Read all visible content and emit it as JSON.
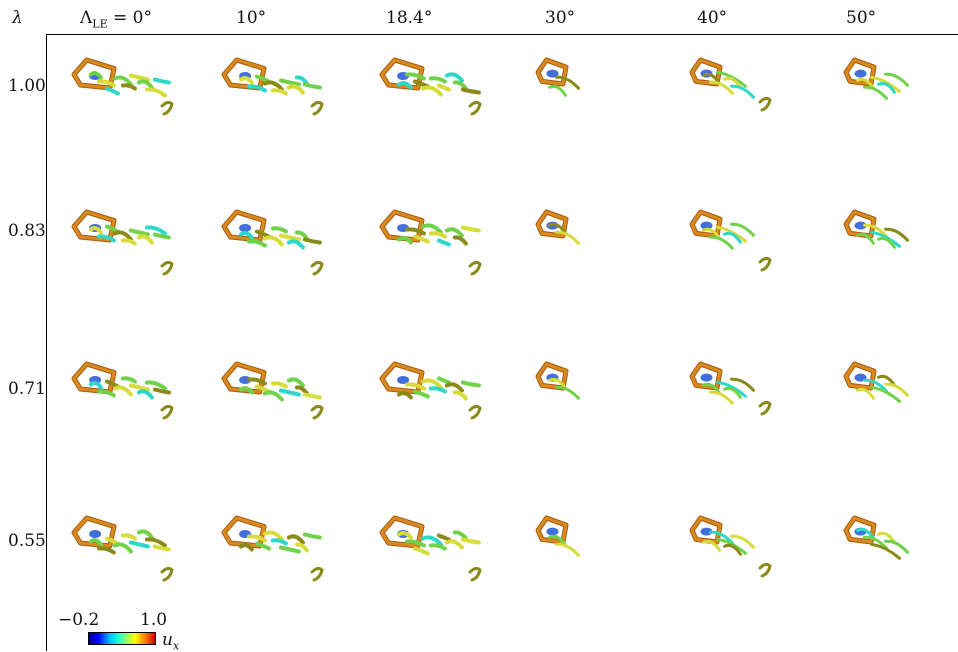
{
  "row_header": "λ",
  "columns": [
    {
      "label": "Λ",
      "sub": "LE",
      "suffix": " = 0°"
    },
    {
      "label": "10°"
    },
    {
      "label": "18.4°"
    },
    {
      "label": "30°"
    },
    {
      "label": "40°"
    },
    {
      "label": "50°"
    }
  ],
  "rows": [
    "1.00",
    "0.83",
    "0.71",
    "0.55"
  ],
  "colorbar": {
    "min_label": "−0.2",
    "max_label": "1.0",
    "variable": "u",
    "variable_sub": "x",
    "min": -0.2,
    "max": 1.0,
    "colormap": "jet"
  },
  "colors": {
    "edge": "#d98a1e",
    "edge_dark": "#a85a10",
    "green": "#6fd24a",
    "yellow": "#d8dc3a",
    "cyan": "#2fd7c8",
    "blue": "#2255d8",
    "olive": "#8a8a1a"
  }
}
